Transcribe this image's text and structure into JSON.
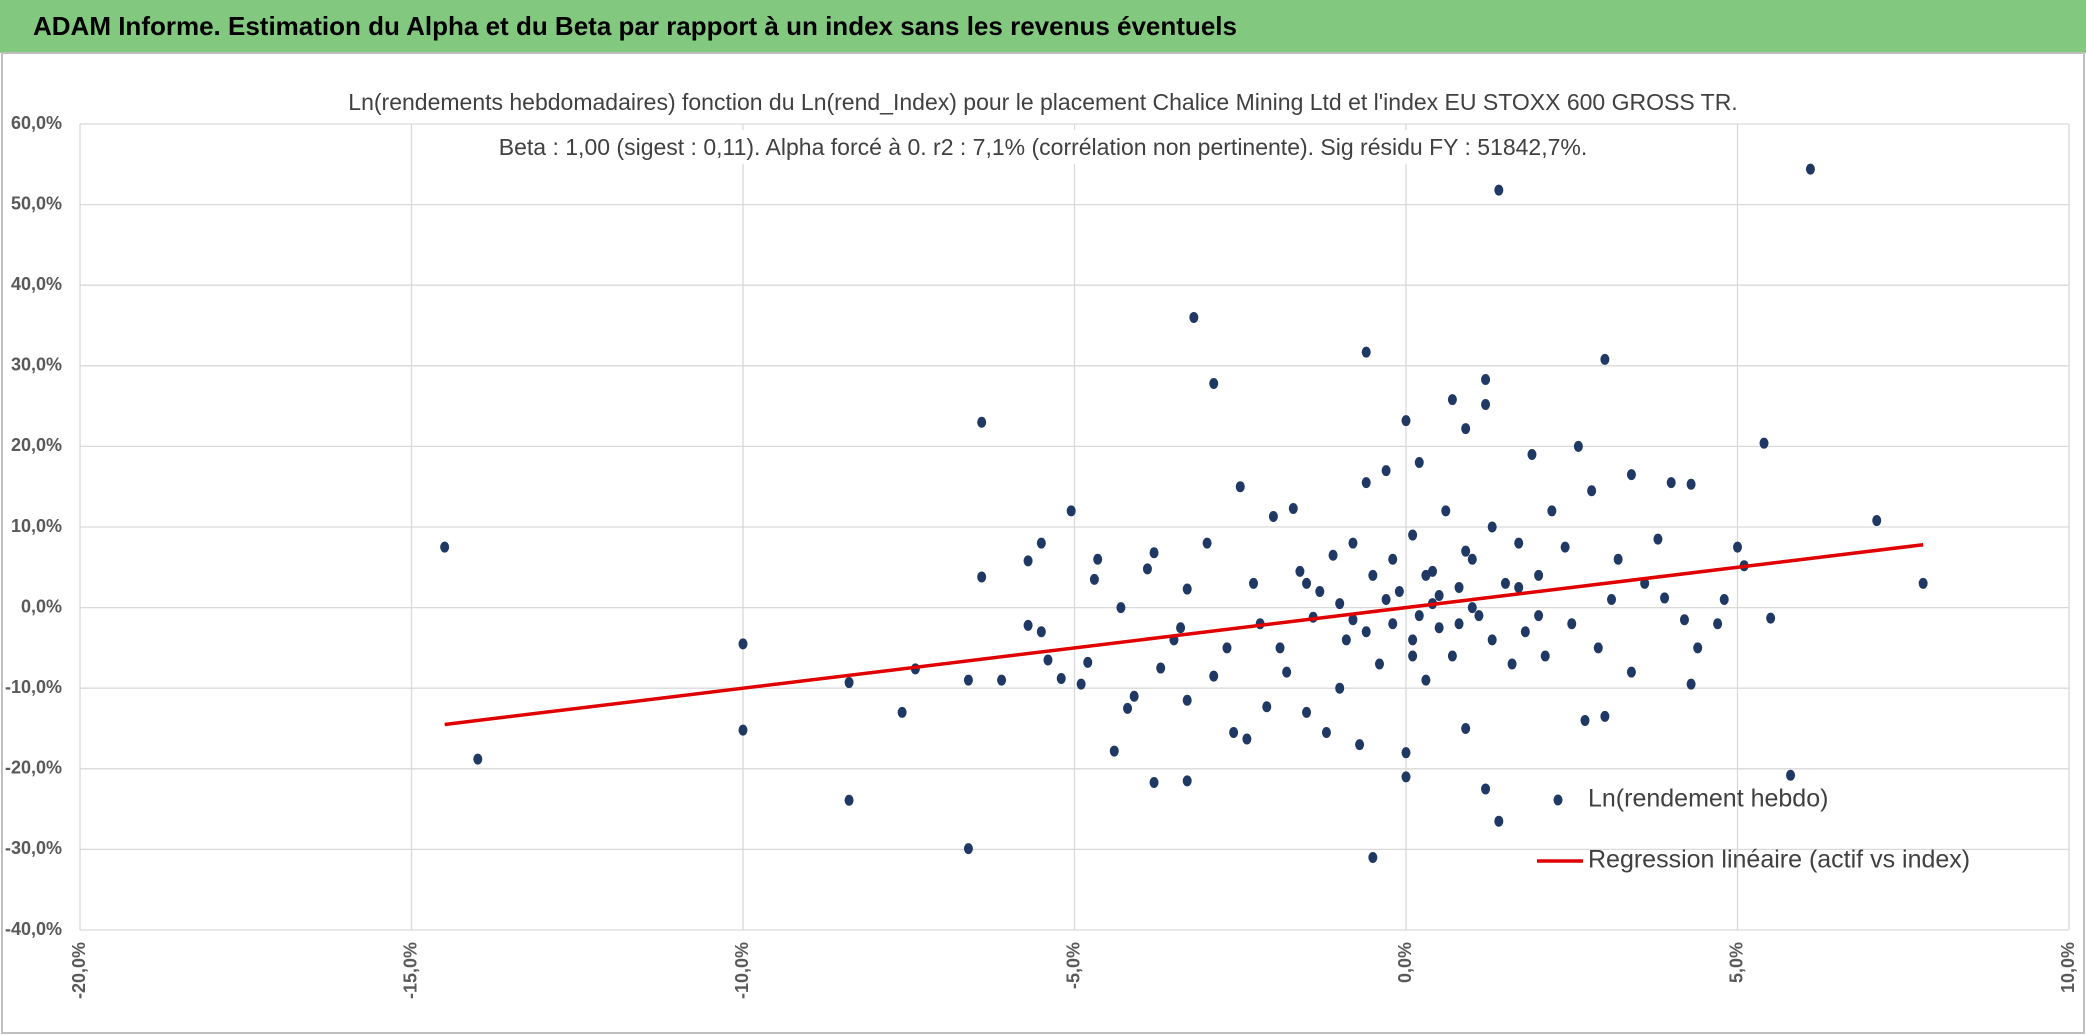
{
  "header": {
    "title": "ADAM Informe. Estimation du Alpha et du Beta par rapport à un index sans les revenus éventuels"
  },
  "chart_data": {
    "type": "scatter",
    "title": "Ln(rendements hebdomadaires) fonction du Ln(rend_Index) pour le placement Chalice Mining Ltd et l'index EU STOXX 600 GROSS TR.",
    "subtitle": "Beta : 1,00 (sigest : 0,11). Alpha forcé à 0. r2 : 7,1% (corrélation non pertinente). Sig résidu FY : 51842,7%.",
    "xlim": [
      -20,
      10
    ],
    "ylim": [
      -40,
      60
    ],
    "xticks": [
      {
        "value": -20,
        "label": "-20,0%"
      },
      {
        "value": -15,
        "label": "-15,0%"
      },
      {
        "value": -10,
        "label": "-10,0%"
      },
      {
        "value": -5,
        "label": "-5,0%"
      },
      {
        "value": 0,
        "label": "0,0%"
      },
      {
        "value": 5,
        "label": "5,0%"
      },
      {
        "value": 10,
        "label": "10,0%"
      }
    ],
    "yticks": [
      {
        "value": -40,
        "label": "-40,0%"
      },
      {
        "value": -30,
        "label": "-30,0%"
      },
      {
        "value": -20,
        "label": "-20,0%"
      },
      {
        "value": -10,
        "label": "-10,0%"
      },
      {
        "value": 0,
        "label": "0,0%"
      },
      {
        "value": 10,
        "label": "10,0%"
      },
      {
        "value": 20,
        "label": "20,0%"
      },
      {
        "value": 30,
        "label": "30,0%"
      },
      {
        "value": 40,
        "label": "40,0%"
      },
      {
        "value": 50,
        "label": "50,0%"
      },
      {
        "value": 60,
        "label": "60,0%"
      }
    ],
    "grid": true,
    "series": [
      {
        "name": "Ln(rendement hebdo)",
        "color": "#203864",
        "type": "scatter",
        "x": [
          -14.5,
          -14,
          -10,
          -10,
          -8.4,
          -8.4,
          -7.6,
          -7.4,
          -6.6,
          -6.6,
          -6.4,
          -6.4,
          -6.1,
          -5.7,
          -5.7,
          -5.5,
          -5.5,
          -5.4,
          -5.2,
          -5.05,
          -4.9,
          -4.8,
          -4.7,
          -4.65,
          -4.4,
          -4.3,
          -4.2,
          -4.1,
          -3.9,
          -3.8,
          -3.8,
          -3.7,
          -3.5,
          -3.4,
          -3.3,
          -3.3,
          -3.3,
          -3.2,
          -3,
          -2.9,
          -2.9,
          -2.7,
          -2.6,
          -2.5,
          -2.4,
          -2.3,
          -2.2,
          -2.1,
          -2,
          -1.9,
          -1.8,
          -1.7,
          -1.6,
          -1.5,
          -1.4,
          -1.3,
          -1.2,
          -1.1,
          -1,
          -0.9,
          -0.8,
          -0.7,
          -0.6,
          -0.6,
          -0.5,
          -0.5,
          -0.4,
          -0.3,
          -0.2,
          -0.1,
          0,
          0,
          0,
          0.1,
          0.1,
          0.2,
          0.3,
          0.3,
          0.4,
          0.5,
          0.6,
          0.7,
          0.7,
          0.8,
          0.9,
          0.9,
          1,
          1.1,
          1.2,
          1.2,
          1.2,
          1.3,
          1.4,
          1.4,
          1.5,
          1.6,
          1.7,
          1.8,
          1.9,
          2,
          2.1,
          2.2,
          2.4,
          2.5,
          2.6,
          2.7,
          2.8,
          2.9,
          3,
          3,
          3.1,
          3.2,
          3.4,
          3.4,
          3.6,
          3.8,
          3.9,
          4,
          4.2,
          4.3,
          4.3,
          4.4,
          4.7,
          4.8,
          5,
          5.1,
          5.4,
          5.5,
          5.8,
          6.1,
          7.1,
          7.8,
          0.2,
          -0.3,
          0.5,
          0.8,
          1,
          -0.6,
          0.4,
          -1,
          1.3,
          0.1,
          -0.2,
          0.9,
          -1.5,
          2,
          1.7,
          -0.8
        ],
        "values": [
          7.5,
          -18.8,
          -4.5,
          -15.2,
          -9.3,
          -23.9,
          -13,
          -7.6,
          -29.9,
          -9,
          23,
          3.8,
          -9,
          5.8,
          -2.2,
          8,
          -3,
          -6.5,
          -8.8,
          12,
          -9.5,
          -6.8,
          3.5,
          6,
          -17.8,
          0,
          -12.5,
          -11,
          4.8,
          6.8,
          -21.7,
          -7.5,
          -4,
          -2.5,
          2.3,
          -11.5,
          -21.5,
          36,
          8,
          27.8,
          -8.5,
          -5,
          -15.5,
          15,
          -16.3,
          3,
          -2,
          -12.3,
          11.3,
          -5,
          -8,
          12.3,
          4.5,
          -13,
          -1.2,
          2,
          -15.5,
          6.5,
          -10,
          -4,
          8,
          -17,
          31.7,
          15.5,
          -31,
          4,
          -7,
          17,
          -2,
          2,
          23.2,
          -18,
          -21,
          9,
          -4,
          18,
          -9,
          4,
          0.5,
          -2.5,
          12,
          25.8,
          -6,
          2.5,
          22.2,
          -15,
          6,
          -1,
          28.3,
          25.2,
          -22.5,
          10,
          51.8,
          -26.5,
          3,
          -7,
          8,
          -3,
          19,
          4,
          -6,
          12,
          7.5,
          -2,
          20,
          -14,
          14.5,
          -5,
          30.8,
          -13.5,
          1,
          6,
          -8,
          16.5,
          3,
          8.5,
          1.2,
          15.5,
          -1.5,
          15.3,
          -9.5,
          -5,
          -2,
          1,
          7.5,
          5.2,
          20.4,
          -1.3,
          -20.8,
          54.4,
          10.8,
          3,
          -1,
          1,
          1.5,
          -2,
          0,
          -3,
          4.5,
          0.5,
          -4,
          -6,
          6,
          7,
          3,
          -1,
          2.5,
          -1.5
        ]
      },
      {
        "name": "Regression linéaire (actif vs index)",
        "color": "#e00000",
        "type": "line",
        "x": [
          -14.5,
          7.8
        ],
        "values": [
          -14.5,
          7.8
        ]
      }
    ]
  }
}
